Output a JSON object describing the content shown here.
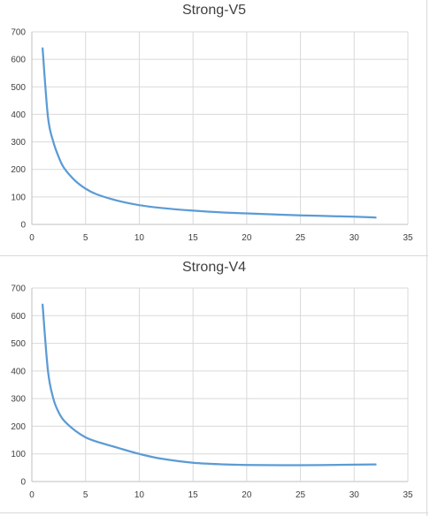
{
  "chart_data": [
    {
      "type": "line",
      "title": "Strong-V5",
      "xlim": [
        0,
        35
      ],
      "ylim": [
        0,
        700
      ],
      "xticks": [
        0,
        5,
        10,
        15,
        20,
        25,
        30,
        35
      ],
      "yticks": [
        0,
        100,
        200,
        300,
        400,
        500,
        600,
        700
      ],
      "grid": true,
      "legend": "none",
      "series": [
        {
          "color": "#5b9bd5",
          "x": [
            1,
            1.5,
            2,
            2.5,
            3,
            4,
            5,
            6,
            8,
            10,
            12,
            15,
            18,
            20,
            25,
            30,
            32
          ],
          "y": [
            640,
            390,
            300,
            245,
            205,
            160,
            130,
            110,
            86,
            70,
            60,
            50,
            43,
            40,
            33,
            28,
            25
          ]
        }
      ]
    },
    {
      "type": "line",
      "title": "Strong-V4",
      "xlim": [
        0,
        35
      ],
      "ylim": [
        0,
        700
      ],
      "xticks": [
        0,
        5,
        10,
        15,
        20,
        25,
        30,
        35
      ],
      "yticks": [
        0,
        100,
        200,
        300,
        400,
        500,
        600,
        700
      ],
      "grid": true,
      "legend": "none",
      "series": [
        {
          "color": "#5b9bd5",
          "x": [
            1,
            1.5,
            2,
            2.5,
            3,
            4,
            5,
            6,
            8,
            10,
            12,
            15,
            18,
            20,
            25,
            30,
            32
          ],
          "y": [
            640,
            400,
            300,
            250,
            220,
            185,
            160,
            145,
            122,
            100,
            83,
            68,
            62,
            60,
            59,
            61,
            62
          ]
        }
      ]
    }
  ]
}
